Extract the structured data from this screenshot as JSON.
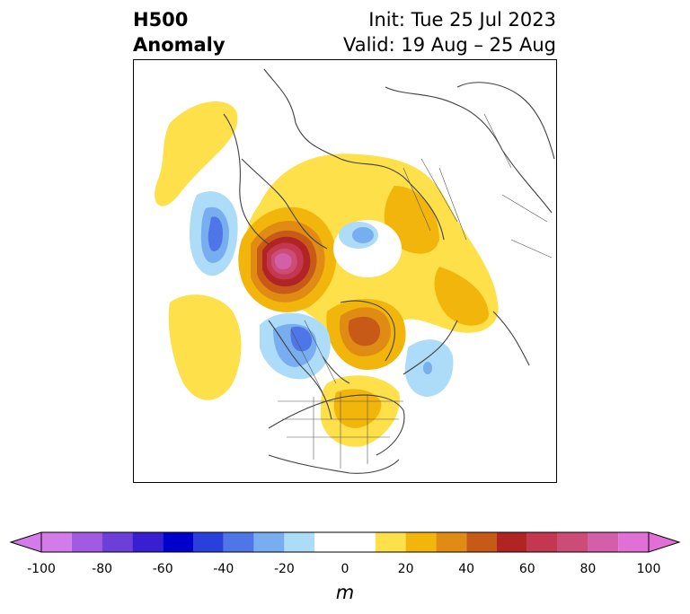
{
  "header": {
    "title_line1": "H500",
    "title_line2": "Anomaly",
    "init_text": "Init: Tue 25 Jul 2023",
    "valid_text": "Valid: 19 Aug – 25 Aug"
  },
  "colorbar": {
    "unit_label": "m",
    "ticks": [
      "-100",
      "-80",
      "-60",
      "-40",
      "-20",
      "0",
      "20",
      "40",
      "60",
      "80",
      "100"
    ],
    "bins": [
      {
        "from": -100,
        "to": -90,
        "color": "#d37be8"
      },
      {
        "from": -90,
        "to": -80,
        "color": "#a05be0"
      },
      {
        "from": -80,
        "to": -70,
        "color": "#6c3fd8"
      },
      {
        "from": -70,
        "to": -60,
        "color": "#3a1fd2"
      },
      {
        "from": -60,
        "to": -50,
        "color": "#0000cc"
      },
      {
        "from": -50,
        "to": -40,
        "color": "#2a40dc"
      },
      {
        "from": -40,
        "to": -30,
        "color": "#4f76e6"
      },
      {
        "from": -30,
        "to": -20,
        "color": "#78aef0"
      },
      {
        "from": -20,
        "to": -10,
        "color": "#acdcf8"
      },
      {
        "from": -10,
        "to": 10,
        "color": "#ffffff"
      },
      {
        "from": 10,
        "to": 20,
        "color": "#fde04a"
      },
      {
        "from": 20,
        "to": 30,
        "color": "#f2b50c"
      },
      {
        "from": 30,
        "to": 40,
        "color": "#e08b14"
      },
      {
        "from": 40,
        "to": 50,
        "color": "#c85a18"
      },
      {
        "from": 50,
        "to": 60,
        "color": "#b02424"
      },
      {
        "from": 60,
        "to": 70,
        "color": "#c33850"
      },
      {
        "from": 70,
        "to": 80,
        "color": "#cc4c78"
      },
      {
        "from": 80,
        "to": 90,
        "color": "#d35fa8"
      },
      {
        "from": 90,
        "to": 100,
        "color": "#e070d6"
      }
    ],
    "extend_low_color": "#d37be8",
    "extend_high_color": "#e070d6"
  }
}
